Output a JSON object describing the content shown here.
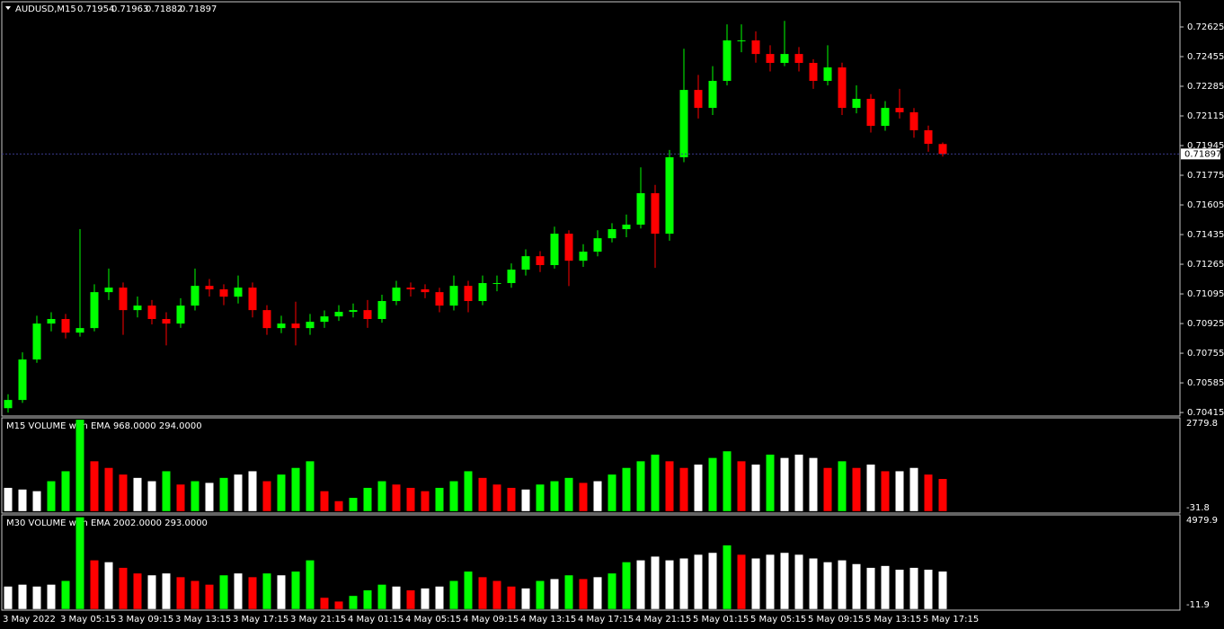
{
  "chart_data": [
    {
      "type": "candlestick",
      "symbol": "AUDUSD,M15",
      "up_color": "#00ff00",
      "down_color": "#ff0000",
      "categories": [
        "3 May 2022",
        null,
        null,
        null,
        "3 May 05:15",
        null,
        null,
        null,
        "3 May 09:15",
        null,
        null,
        null,
        "3 May 13:15",
        null,
        null,
        null,
        "3 May 17:15",
        null,
        null,
        null,
        "3 May 21:15",
        null,
        null,
        null,
        "4 May 01:15",
        null,
        null,
        null,
        "4 May 05:15",
        null,
        null,
        null,
        "4 May 09:15",
        null,
        null,
        null,
        "4 May 13:15",
        null,
        null,
        null,
        "4 May 17:15",
        null,
        null,
        null,
        "4 May 21:15",
        null,
        null,
        null,
        "5 May 01:15",
        null,
        null,
        null,
        "5 May 05:15",
        null,
        null,
        null,
        "5 May 09:15",
        null,
        null,
        null,
        "5 May 13:15",
        null,
        null,
        null,
        "5 May 17:15",
        null
      ],
      "open": [
        0.7044,
        0.70487,
        0.70719,
        0.70925,
        0.70951,
        0.70873,
        0.70899,
        0.71105,
        0.71131,
        0.71002,
        0.71028,
        0.70951,
        0.70925,
        0.71028,
        0.71141,
        0.71121,
        0.71079,
        0.71131,
        0.71002,
        0.70899,
        0.70925,
        0.70899,
        0.70935,
        0.70966,
        0.70992,
        0.71002,
        0.70951,
        0.71054,
        0.71131,
        0.71121,
        0.71105,
        0.71028,
        0.71141,
        0.71054,
        0.71157,
        0.71157,
        0.71234,
        0.71311,
        0.7126,
        0.7144,
        0.71285,
        0.71337,
        0.71414,
        0.71466,
        0.71492,
        0.71672,
        0.7144,
        0.71878,
        0.72264,
        0.72161,
        0.72316,
        0.72548,
        0.72548,
        0.7247,
        0.72419,
        0.7247,
        0.72419,
        0.72316,
        0.72393,
        0.72161,
        0.72213,
        0.72058,
        0.72161,
        0.72136,
        0.72033,
        0.71954
      ],
      "high": [
        0.7052,
        0.7076,
        0.7097,
        0.7099,
        0.7098,
        0.71466,
        0.7115,
        0.7124,
        0.7116,
        0.7108,
        0.7106,
        0.7099,
        0.7107,
        0.7124,
        0.7118,
        0.7115,
        0.712,
        0.7116,
        0.7103,
        0.7097,
        0.7105,
        0.7098,
        0.71,
        0.7103,
        0.7104,
        0.7106,
        0.7109,
        0.7117,
        0.7116,
        0.7115,
        0.7113,
        0.712,
        0.7117,
        0.712,
        0.712,
        0.7127,
        0.7135,
        0.7134,
        0.7148,
        0.7146,
        0.7138,
        0.7146,
        0.715,
        0.7155,
        0.7182,
        0.7172,
        0.7192,
        0.725,
        0.7235,
        0.724,
        0.7264,
        0.7264,
        0.726,
        0.7252,
        0.7266,
        0.7251,
        0.7244,
        0.7252,
        0.7242,
        0.7229,
        0.7224,
        0.722,
        0.7227,
        0.7216,
        0.7206,
        0.71963
      ],
      "low": [
        0.70415,
        0.7047,
        0.707,
        0.7088,
        0.7084,
        0.7085,
        0.7088,
        0.7106,
        0.7086,
        0.7096,
        0.7092,
        0.708,
        0.709,
        0.71,
        0.7108,
        0.7103,
        0.7104,
        0.7096,
        0.7086,
        0.7087,
        0.708,
        0.7086,
        0.709,
        0.7094,
        0.7096,
        0.709,
        0.7093,
        0.7103,
        0.7108,
        0.7107,
        0.7099,
        0.71,
        0.7099,
        0.7103,
        0.7111,
        0.7113,
        0.712,
        0.7122,
        0.7124,
        0.7114,
        0.7125,
        0.7131,
        0.7139,
        0.7142,
        0.7147,
        0.71244,
        0.714,
        0.7185,
        0.721,
        0.7212,
        0.7229,
        0.7248,
        0.7242,
        0.7237,
        0.724,
        0.7237,
        0.7227,
        0.7229,
        0.7212,
        0.7213,
        0.7202,
        0.7203,
        0.721,
        0.7199,
        0.7191,
        0.71882
      ],
      "close": [
        0.70487,
        0.70719,
        0.70925,
        0.70951,
        0.70873,
        0.70899,
        0.71105,
        0.71131,
        0.71002,
        0.71028,
        0.70951,
        0.70925,
        0.71028,
        0.71141,
        0.71121,
        0.71079,
        0.71131,
        0.71002,
        0.70899,
        0.70925,
        0.70899,
        0.70935,
        0.70966,
        0.70992,
        0.71002,
        0.70951,
        0.71054,
        0.71131,
        0.71121,
        0.71105,
        0.71028,
        0.71141,
        0.71054,
        0.71157,
        0.71157,
        0.71234,
        0.71311,
        0.7126,
        0.7144,
        0.71285,
        0.71337,
        0.71414,
        0.71466,
        0.71492,
        0.71672,
        0.7144,
        0.71878,
        0.72264,
        0.72161,
        0.72316,
        0.72548,
        0.72548,
        0.7247,
        0.72419,
        0.7247,
        0.72419,
        0.72316,
        0.72393,
        0.72161,
        0.72213,
        0.72058,
        0.72161,
        0.72136,
        0.72033,
        0.71955,
        0.71897
      ],
      "ylim": [
        0.704,
        0.72764
      ],
      "yticks": [
        0.72625,
        0.72455,
        0.72285,
        0.72115,
        0.71945,
        0.71775,
        0.71605,
        0.71435,
        0.71265,
        0.71095,
        0.70925,
        0.70755,
        0.70585,
        0.70415
      ]
    },
    {
      "type": "bar",
      "title": "M15 VOLUME with EMA 968.0000 294.0000",
      "colors": {
        "up": "#00ff00",
        "down": "#ff0000",
        "flat": "#ffffff"
      },
      "values": [
        700,
        650,
        600,
        900,
        1200,
        2750,
        1500,
        1300,
        1100,
        1000,
        900,
        1200,
        800,
        900,
        850,
        1000,
        1100,
        1200,
        900,
        1100,
        1300,
        1500,
        600,
        300,
        400,
        700,
        900,
        800,
        700,
        600,
        700,
        900,
        1200,
        1000,
        800,
        700,
        650,
        800,
        900,
        1000,
        850,
        900,
        1100,
        1300,
        1500,
        1700,
        1500,
        1300,
        1400,
        1600,
        1800,
        1500,
        1400,
        1700,
        1600,
        1700,
        1600,
        1300,
        1500,
        1300,
        1400,
        1200,
        1200,
        1300,
        1100,
        968
      ],
      "ylim": [
        -31.8,
        2779.8
      ],
      "yticks": [
        2779.8,
        -31.8
      ]
    },
    {
      "type": "bar",
      "title": "M30 VOLUME with EMA 2002.0000 293.0000",
      "colors": {
        "up": "#00ff00",
        "down": "#ff0000",
        "flat": "#ffffff"
      },
      "values": [
        1200,
        1300,
        1200,
        1300,
        1500,
        4900,
        2600,
        2500,
        2200,
        1900,
        1800,
        1900,
        1700,
        1500,
        1300,
        1800,
        1900,
        1700,
        1900,
        1800,
        2000,
        2600,
        600,
        400,
        700,
        1000,
        1300,
        1200,
        1000,
        1100,
        1200,
        1500,
        2000,
        1700,
        1500,
        1200,
        1100,
        1500,
        1600,
        1800,
        1600,
        1700,
        1900,
        2500,
        2600,
        2800,
        2600,
        2700,
        2900,
        3000,
        3400,
        2900,
        2700,
        2900,
        3000,
        2900,
        2700,
        2500,
        2600,
        2400,
        2200,
        2300,
        2100,
        2200,
        2100,
        2002
      ],
      "ylim": [
        -11.9,
        4979.9
      ],
      "yticks": [
        4979.9,
        -11.9
      ]
    }
  ]
}
